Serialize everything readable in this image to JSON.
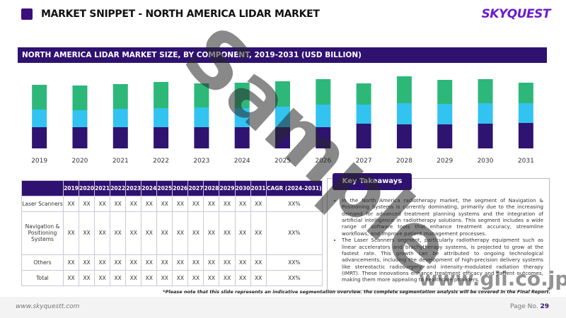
{
  "header": {
    "title": "MARKET SNIPPET - NORTH AMERICA LIDAR MARKET",
    "logo": "SKYQUEST"
  },
  "chart_data": {
    "type": "stacked-bar",
    "title": "NORTH AMERICA LIDAR MARKET SIZE, BY COMPONENT, 2019-2031 (USD BILLION)",
    "categories": [
      "2019",
      "2020",
      "2021",
      "2022",
      "2023",
      "2024",
      "2025",
      "2026",
      "2027",
      "2028",
      "2029",
      "2030",
      "2031"
    ],
    "series": [
      {
        "color": "#2e1470",
        "values": [
          30,
          30,
          30,
          30,
          30,
          30,
          30,
          30,
          35,
          34,
          34,
          35,
          36
        ]
      },
      {
        "color": "#33c3f0",
        "values": [
          25,
          24,
          26,
          27,
          28,
          27,
          29,
          32,
          27,
          30,
          29,
          29,
          28
        ]
      },
      {
        "color": "#2db87a",
        "values": [
          35,
          35,
          35,
          37,
          34,
          36,
          36,
          36,
          30,
          38,
          34,
          34,
          29
        ]
      }
    ]
  },
  "table": {
    "header": [
      "2019",
      "2020",
      "2021",
      "2022",
      "2023",
      "2024",
      "2025",
      "2026",
      "2027",
      "2028",
      "2029",
      "2030",
      "2031",
      "CAGR (2024-2031)"
    ],
    "rows": [
      [
        "Laser Scanners",
        "XX",
        "XX",
        "XX",
        "XX",
        "XX",
        "XX",
        "XX",
        "XX",
        "XX",
        "XX",
        "XX",
        "XX",
        "XX",
        "XX%"
      ],
      [
        "Navigation & Positioning Systems",
        "XX",
        "XX",
        "XX",
        "XX",
        "XX",
        "XX",
        "XX",
        "XX",
        "XX",
        "XX",
        "XX",
        "XX",
        "XX",
        "XX%"
      ],
      [
        "Others",
        "XX",
        "XX",
        "XX",
        "XX",
        "XX",
        "XX",
        "XX",
        "XX",
        "XX",
        "XX",
        "XX",
        "XX",
        "XX",
        "XX%"
      ],
      [
        "Total",
        "XX",
        "XX",
        "XX",
        "XX",
        "XX",
        "XX",
        "XX",
        "XX",
        "XX",
        "XX",
        "XX",
        "XX",
        "XX",
        "XX%"
      ]
    ]
  },
  "takeaways": {
    "title": "Key Takeaways",
    "items": [
      "In the North America radiotherapy market, the segment of Navigation & Positioning Systems is currently dominating, primarily due to the increasing demand for advanced treatment planning systems and the integration of artificial intelligence in radiotherapy solutions. This segment includes a wide range of software tools that enhance treatment accuracy, streamline workflows, and improve patient management processes.",
      "The Laser Scanners segment, particularly radiotherapy equipment such as linear accelerators and brachytherapy systems, is projected to grow at the fastest rate. This growth can be attributed to ongoing technological advancements, including the development of high-precision delivery systems like stereotactic radiosurgery and intensity-modulated radiation therapy (IMRT). These innovations enhance treatment efficacy and patient outcomes, making them more appealing to healthcare providers."
    ]
  },
  "note": "*Please note that this slide represents an indicative segmentation overview. the complete segmentation analysis will be covered in the Final Report.",
  "footer": {
    "url": "www.skyquestt.com",
    "page_label": "Page No.",
    "page_number": "29"
  },
  "watermark": {
    "text": "Sample",
    "url": "www.gii.co.jp"
  }
}
